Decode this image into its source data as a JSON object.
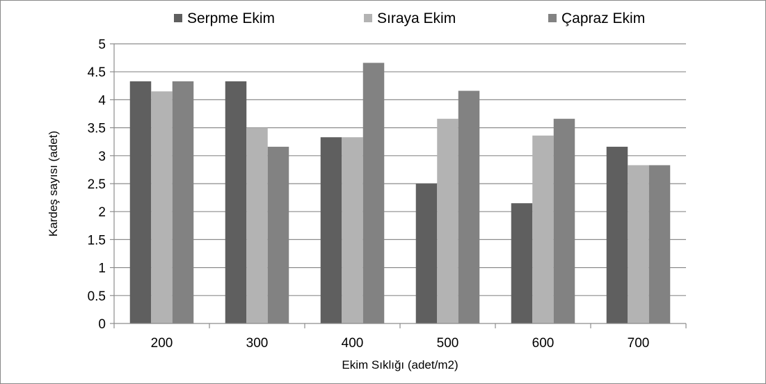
{
  "chart_data": {
    "type": "bar",
    "categories": [
      "200",
      "300",
      "400",
      "500",
      "600",
      "700"
    ],
    "series": [
      {
        "name": "Serpme Ekim",
        "color": "#5f5f5f",
        "values": [
          4.33,
          4.33,
          3.33,
          2.5,
          2.15,
          3.16
        ]
      },
      {
        "name": "Sıraya Ekim",
        "color": "#b3b3b3",
        "values": [
          4.15,
          3.5,
          3.33,
          3.66,
          3.36,
          2.83
        ]
      },
      {
        "name": "Çapraz Ekim",
        "color": "#828282",
        "values": [
          4.33,
          3.16,
          4.66,
          4.16,
          3.66,
          2.83
        ]
      }
    ],
    "xlabel": "Ekim Sıklığı (adet/m2)",
    "ylabel": "Kardeş  sayısı (adet)",
    "ylim": [
      0,
      5
    ],
    "yticks": [
      "0",
      "0.5",
      "1",
      "1.5",
      "2",
      "2.5",
      "3",
      "3.5",
      "4",
      "4.5",
      "5"
    ],
    "grid": true,
    "legend_position": "top"
  }
}
